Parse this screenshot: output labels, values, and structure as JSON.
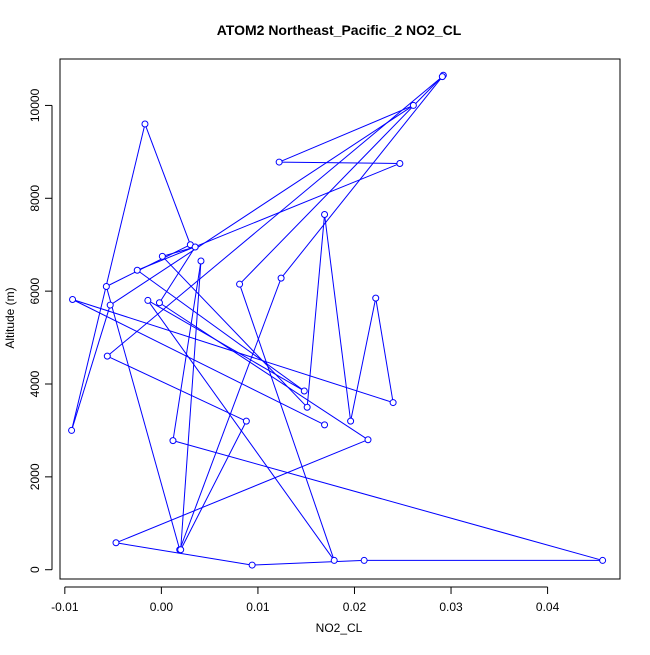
{
  "chart_data": {
    "type": "line",
    "title": "ATOM2 Northeast_Pacific_2 NO2_CL",
    "xlabel": "NO2_CL",
    "ylabel": "Altitude (m)",
    "xlim": [
      -0.0105,
      0.0475
    ],
    "ylim": [
      -200,
      11000
    ],
    "x_ticks": [
      -0.01,
      0.0,
      0.01,
      0.02,
      0.03,
      0.04
    ],
    "x_tick_labels": [
      "-0.01",
      "0.00",
      "0.01",
      "0.02",
      "0.03",
      "0.04"
    ],
    "y_ticks": [
      0,
      2000,
      4000,
      6000,
      8000,
      10000
    ],
    "y_tick_labels": [
      "0",
      "2000",
      "4000",
      "6000",
      "8000",
      "10000"
    ],
    "grid": false,
    "series": [
      {
        "color": "#0000ff",
        "marker": "open-circle",
        "points": [
          {
            "x": 0.0292,
            "y": 10650
          },
          {
            "x": 0.0081,
            "y": 6150
          },
          {
            "x": 0.0179,
            "y": 200
          },
          {
            "x": -0.0014,
            "y": 5800
          },
          {
            "x": 0.0148,
            "y": 3850
          },
          {
            "x": -0.0025,
            "y": 6450
          },
          {
            "x": 0.0247,
            "y": 8750
          },
          {
            "x": 0.0122,
            "y": 8780
          },
          {
            "x": 0.0261,
            "y": 10000
          },
          {
            "x": -0.0053,
            "y": 5700
          },
          {
            "x": -0.0093,
            "y": 3000
          },
          {
            "x": -0.0017,
            "y": 9600
          },
          {
            "x": 0.003,
            "y": 7000
          },
          {
            "x": -0.0057,
            "y": 6100
          },
          {
            "x": 0.0019,
            "y": 430
          },
          {
            "x": 0.0124,
            "y": 6280
          },
          {
            "x": 0.0291,
            "y": 10620
          },
          {
            "x": -0.0056,
            "y": 4600
          },
          {
            "x": 0.0088,
            "y": 3200
          },
          {
            "x": 0.002,
            "y": 430
          },
          {
            "x": 0.0041,
            "y": 6650
          },
          {
            "x": 0.0012,
            "y": 2780
          },
          {
            "x": 0.0457,
            "y": 200
          },
          {
            "x": 0.021,
            "y": 200
          },
          {
            "x": 0.0094,
            "y": 100
          },
          {
            "x": -0.0047,
            "y": 580
          },
          {
            "x": 0.0214,
            "y": 2800
          },
          {
            "x": -0.0002,
            "y": 5750
          },
          {
            "x": 0.0035,
            "y": 6950
          },
          {
            "x": 0.0001,
            "y": 6750
          },
          {
            "x": 0.0151,
            "y": 3500
          },
          {
            "x": 0.0169,
            "y": 7650
          },
          {
            "x": 0.0196,
            "y": 3200
          },
          {
            "x": 0.0222,
            "y": 5850
          },
          {
            "x": 0.024,
            "y": 3600
          },
          {
            "x": -0.0092,
            "y": 5820
          },
          {
            "x": 0.0169,
            "y": 3120
          }
        ]
      }
    ]
  }
}
